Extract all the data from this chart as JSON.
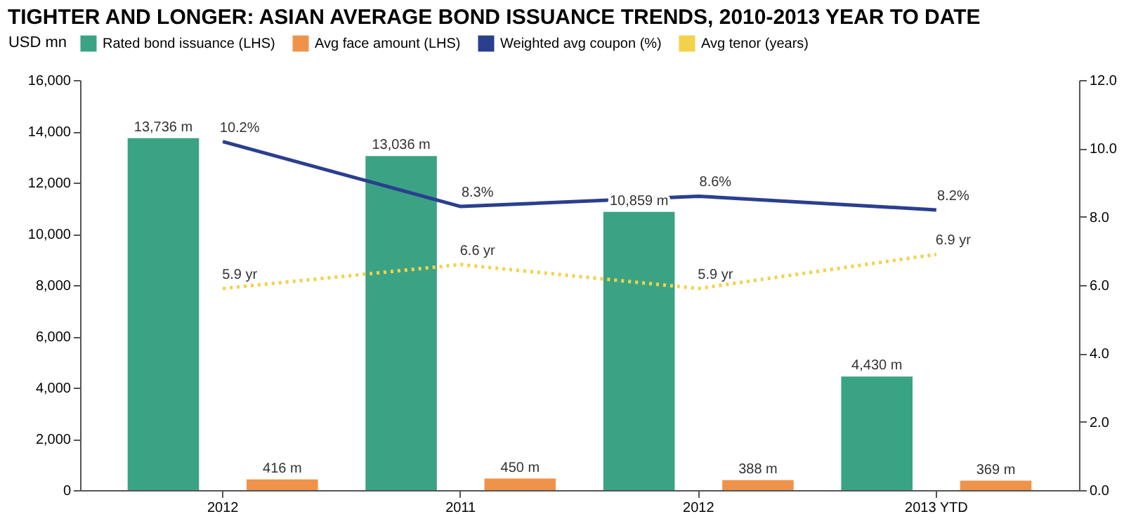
{
  "chart_data": {
    "type": "bar",
    "title": "TIGHTER AND LONGER: ASIAN AVERAGE BOND ISSUANCE TRENDS, 2010-2013 YEAR TO DATE",
    "ylabel": "USD mn",
    "categories": [
      "2012",
      "2011",
      "2012",
      "2013 YTD"
    ],
    "series": [
      {
        "name": "Rated bond issuance (LHS)",
        "color": "#3aa384",
        "values": [
          13736,
          13036,
          10859,
          4430
        ],
        "value_labels": [
          "13,736 m",
          "13,036 m",
          "10,859 m",
          "4,430 m"
        ]
      },
      {
        "name": "Avg face amount (LHS)",
        "color": "#f0934a",
        "values": [
          416,
          450,
          388,
          369
        ],
        "value_labels": [
          "416 m",
          "450 m",
          "388 m",
          "369 m"
        ]
      },
      {
        "name": "Weighted avg coupon (%)",
        "color": "#2b3f8f",
        "type": "line",
        "axis": "y2",
        "line_style": "solid",
        "values": [
          10.2,
          8.3,
          8.6,
          8.2
        ],
        "value_labels": [
          "10.2%",
          "8.3%",
          "8.6%",
          "8.2%"
        ]
      },
      {
        "name": "Avg tenor (years)",
        "color": "#f2d24b",
        "type": "line",
        "axis": "y2",
        "line_style": "dotted",
        "values": [
          5.9,
          6.6,
          5.9,
          6.9
        ],
        "value_labels": [
          "5.9 yr",
          "6.6 yr",
          "5.9 yr",
          "6.9 yr"
        ]
      }
    ],
    "ylim": [
      0,
      16000
    ],
    "yticks": [
      {
        "value": 0,
        "label": "0"
      },
      {
        "value": 2000,
        "label": "2,000"
      },
      {
        "value": 4000,
        "label": "4,000"
      },
      {
        "value": 6000,
        "label": "6,000"
      },
      {
        "value": 8000,
        "label": "8,000"
      },
      {
        "value": 10000,
        "label": "10,000"
      },
      {
        "value": 12000,
        "label": "12,000"
      },
      {
        "value": 14000,
        "label": "14,000"
      },
      {
        "value": 16000,
        "label": "16,000"
      }
    ],
    "y2lim": [
      0,
      12
    ],
    "y2ticks": [
      {
        "value": 0,
        "label": "0.0"
      },
      {
        "value": 2,
        "label": "2.0"
      },
      {
        "value": 4,
        "label": "4.0"
      },
      {
        "value": 6,
        "label": "6.0"
      },
      {
        "value": 8,
        "label": "8.0"
      },
      {
        "value": 10,
        "label": "10.0"
      },
      {
        "value": 12,
        "label": "12.0"
      }
    ],
    "grid": false,
    "legend": "top"
  }
}
